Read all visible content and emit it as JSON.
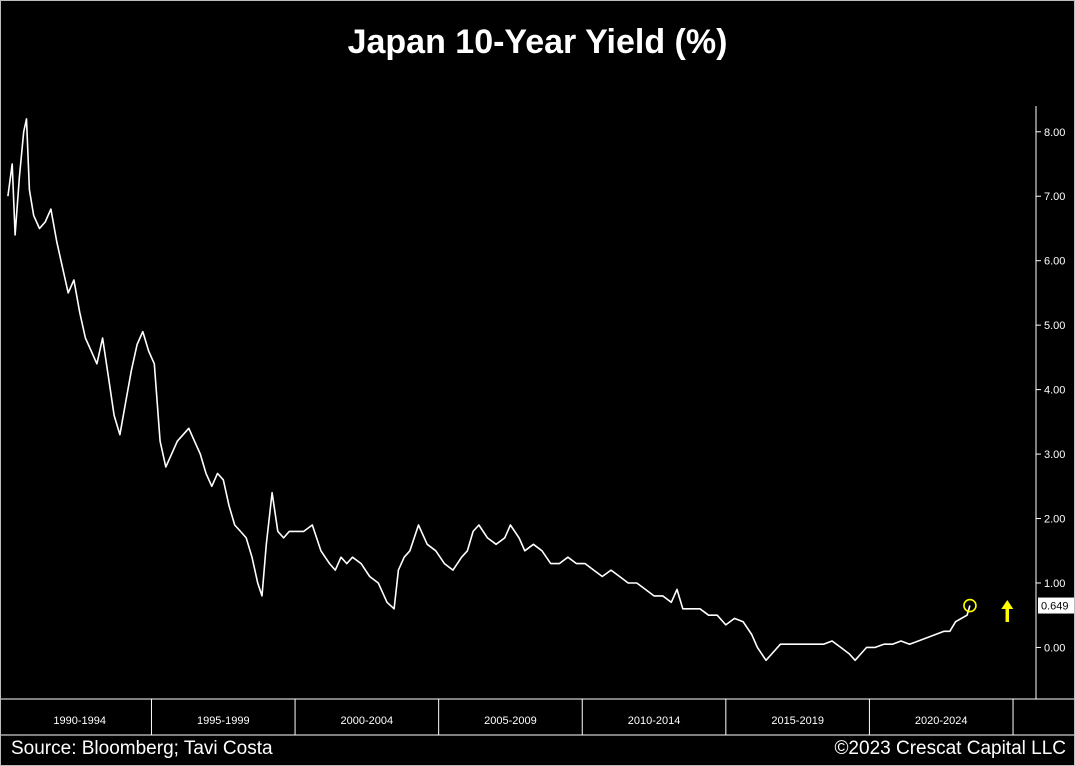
{
  "chart_data": {
    "type": "line",
    "title": "Japan 10-Year Yield (%)",
    "xlabel": "",
    "ylabel": "",
    "x_range": [
      1989.9,
      2025.8
    ],
    "ylim": [
      -0.8,
      8.4
    ],
    "y_axis_position": "right",
    "y_ticks": [
      8.0,
      7.0,
      6.0,
      5.0,
      4.0,
      3.0,
      2.0,
      1.0,
      0.0
    ],
    "y_tick_labels": [
      "8.00",
      "7.00",
      "6.00",
      "5.00",
      "4.00",
      "3.00",
      "2.00",
      "1.00",
      "0.00"
    ],
    "periods": [
      "1990-1994",
      "1995-1999",
      "2000-2004",
      "2005-2009",
      "2010-2014",
      "2015-2019",
      "2020-2024"
    ],
    "grid": false,
    "series": [
      {
        "color": "#ffffff",
        "x": [
          1990.0,
          1990.15,
          1990.25,
          1990.4,
          1990.55,
          1990.65,
          1990.75,
          1990.9,
          1991.1,
          1991.3,
          1991.5,
          1991.7,
          1991.9,
          1992.1,
          1992.3,
          1992.5,
          1992.7,
          1992.9,
          1993.1,
          1993.3,
          1993.5,
          1993.7,
          1993.9,
          1994.1,
          1994.3,
          1994.5,
          1994.7,
          1994.9,
          1995.1,
          1995.3,
          1995.5,
          1995.7,
          1995.9,
          1996.1,
          1996.3,
          1996.5,
          1996.7,
          1996.9,
          1997.1,
          1997.3,
          1997.5,
          1997.7,
          1997.9,
          1998.1,
          1998.3,
          1998.5,
          1998.7,
          1998.85,
          1999.0,
          1999.2,
          1999.4,
          1999.6,
          1999.8,
          2000.0,
          2000.3,
          2000.6,
          2000.9,
          2001.2,
          2001.4,
          2001.6,
          2001.8,
          2002.0,
          2002.3,
          2002.6,
          2002.9,
          2003.2,
          2003.45,
          2003.6,
          2003.8,
          2004.0,
          2004.3,
          2004.6,
          2004.9,
          2005.2,
          2005.5,
          2005.8,
          2006.0,
          2006.2,
          2006.4,
          2006.7,
          2007.0,
          2007.3,
          2007.5,
          2007.8,
          2008.0,
          2008.3,
          2008.6,
          2008.9,
          2009.2,
          2009.5,
          2009.8,
          2010.1,
          2010.4,
          2010.7,
          2011.0,
          2011.3,
          2011.6,
          2011.9,
          2012.2,
          2012.5,
          2012.8,
          2013.1,
          2013.3,
          2013.5,
          2013.8,
          2014.1,
          2014.4,
          2014.7,
          2015.0,
          2015.3,
          2015.6,
          2015.9,
          2016.1,
          2016.4,
          2016.6,
          2016.9,
          2017.2,
          2017.5,
          2017.8,
          2018.1,
          2018.4,
          2018.7,
          2019.0,
          2019.3,
          2019.5,
          2019.7,
          2019.9,
          2020.2,
          2020.5,
          2020.8,
          2021.1,
          2021.4,
          2021.7,
          2022.0,
          2022.3,
          2022.6,
          2022.8,
          2023.0,
          2023.2,
          2023.4,
          2023.5
        ],
        "y": [
          7.0,
          7.5,
          6.4,
          7.3,
          8.0,
          8.2,
          7.1,
          6.7,
          6.5,
          6.6,
          6.8,
          6.3,
          5.9,
          5.5,
          5.7,
          5.2,
          4.8,
          4.6,
          4.4,
          4.8,
          4.2,
          3.6,
          3.3,
          3.8,
          4.3,
          4.7,
          4.9,
          4.6,
          4.4,
          3.2,
          2.8,
          3.0,
          3.2,
          3.3,
          3.4,
          3.2,
          3.0,
          2.7,
          2.5,
          2.7,
          2.6,
          2.2,
          1.9,
          1.8,
          1.7,
          1.4,
          1.0,
          0.8,
          1.6,
          2.4,
          1.8,
          1.7,
          1.8,
          1.8,
          1.8,
          1.9,
          1.5,
          1.3,
          1.2,
          1.4,
          1.3,
          1.4,
          1.3,
          1.1,
          1.0,
          0.7,
          0.6,
          1.2,
          1.4,
          1.5,
          1.9,
          1.6,
          1.5,
          1.3,
          1.2,
          1.4,
          1.5,
          1.8,
          1.9,
          1.7,
          1.6,
          1.7,
          1.9,
          1.7,
          1.5,
          1.6,
          1.5,
          1.3,
          1.3,
          1.4,
          1.3,
          1.3,
          1.2,
          1.1,
          1.2,
          1.1,
          1.0,
          1.0,
          0.9,
          0.8,
          0.8,
          0.7,
          0.9,
          0.6,
          0.6,
          0.6,
          0.5,
          0.5,
          0.35,
          0.45,
          0.4,
          0.2,
          0.0,
          -0.2,
          -0.1,
          0.05,
          0.05,
          0.05,
          0.05,
          0.05,
          0.05,
          0.1,
          0.0,
          -0.1,
          -0.2,
          -0.1,
          0.0,
          0.0,
          0.05,
          0.05,
          0.1,
          0.05,
          0.1,
          0.15,
          0.2,
          0.25,
          0.25,
          0.4,
          0.45,
          0.5,
          0.65
        ]
      }
    ],
    "last_value_label": "0.649",
    "annotations": [
      {
        "type": "circle",
        "x": 2023.5,
        "y": 0.649,
        "color": "#ffff00"
      },
      {
        "type": "up-arrow",
        "x": 2024.8,
        "y": 0.55,
        "color": "#ffff00"
      }
    ],
    "source": "Source: Bloomberg; Tavi Costa",
    "credit": "©2023 Crescat Capital LLC"
  }
}
